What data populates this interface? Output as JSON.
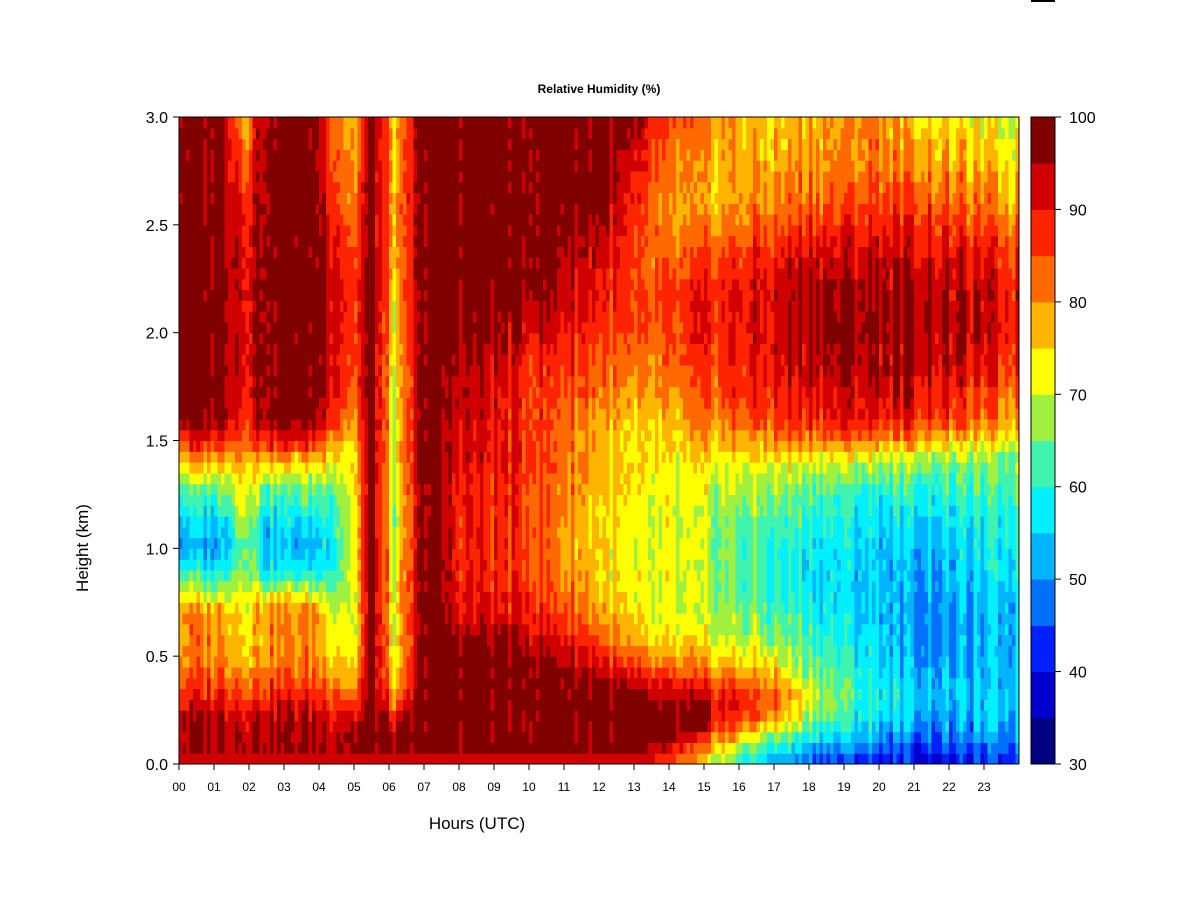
{
  "chart_data": {
    "type": "heatmap",
    "title": "Relative Humidity (%)",
    "xlabel": "Hours (UTC)",
    "ylabel": "Height (km)",
    "xlim": [
      0,
      24
    ],
    "ylim": [
      0,
      3
    ],
    "x_ticks": [
      "00",
      "01",
      "02",
      "03",
      "04",
      "05",
      "06",
      "07",
      "08",
      "09",
      "10",
      "11",
      "12",
      "13",
      "14",
      "15",
      "16",
      "17",
      "18",
      "19",
      "20",
      "21",
      "22",
      "23"
    ],
    "y_ticks": [
      "0.0",
      "0.5",
      "1.0",
      "1.5",
      "2.0",
      "2.5",
      "3.0"
    ],
    "colorbar": {
      "range": [
        30,
        100
      ],
      "levels": [
        30,
        35,
        40,
        45,
        50,
        55,
        60,
        65,
        70,
        75,
        80,
        85,
        90,
        95,
        100
      ],
      "tick_labels": [
        "30",
        "40",
        "50",
        "60",
        "70",
        "80",
        "90",
        "100"
      ],
      "colors": [
        "#000080",
        "#0000cd",
        "#0020ff",
        "#0070ff",
        "#00b4ff",
        "#00f0ff",
        "#40f4b0",
        "#a0f040",
        "#ffff00",
        "#ffb400",
        "#ff6a00",
        "#ff2400",
        "#d00000",
        "#800000"
      ]
    },
    "heights_km": [
      0.0,
      0.1,
      0.2,
      0.3,
      0.4,
      0.5,
      0.6,
      0.7,
      0.8,
      0.9,
      1.0,
      1.1,
      1.2,
      1.3,
      1.4,
      1.5,
      1.6,
      1.8,
      2.0,
      2.2,
      2.4,
      2.6,
      2.8,
      3.0
    ],
    "profiles": [
      {
        "hour": 0.0,
        "rh": [
          96,
          96,
          96,
          90,
          84,
          80,
          80,
          82,
          70,
          60,
          52,
          55,
          60,
          66,
          75,
          88,
          98,
          99,
          99,
          99,
          99,
          98,
          98,
          98
        ]
      },
      {
        "hour": 1.2,
        "rh": [
          96,
          96,
          96,
          90,
          85,
          82,
          80,
          80,
          68,
          58,
          52,
          55,
          60,
          67,
          78,
          90,
          98,
          99,
          99,
          99,
          99,
          98,
          98,
          98
        ]
      },
      {
        "hour": 1.9,
        "rh": [
          96,
          96,
          95,
          88,
          82,
          78,
          76,
          76,
          72,
          70,
          70,
          72,
          74,
          76,
          80,
          86,
          90,
          92,
          92,
          92,
          92,
          90,
          84,
          80
        ]
      },
      {
        "hour": 2.5,
        "rh": [
          96,
          96,
          95,
          90,
          84,
          80,
          80,
          82,
          70,
          58,
          52,
          55,
          60,
          66,
          76,
          90,
          98,
          99,
          99,
          99,
          99,
          99,
          99,
          99
        ]
      },
      {
        "hour": 3.8,
        "rh": [
          96,
          96,
          95,
          90,
          84,
          80,
          80,
          82,
          70,
          58,
          52,
          55,
          60,
          66,
          76,
          90,
          98,
          99,
          99,
          99,
          99,
          99,
          99,
          99
        ]
      },
      {
        "hour": 4.4,
        "rh": [
          96,
          96,
          95,
          88,
          82,
          76,
          74,
          74,
          68,
          62,
          60,
          62,
          64,
          68,
          74,
          82,
          90,
          94,
          95,
          95,
          94,
          90,
          88,
          86
        ]
      },
      {
        "hour": 5.0,
        "rh": [
          96,
          96,
          94,
          84,
          76,
          72,
          70,
          70,
          70,
          72,
          72,
          72,
          72,
          72,
          74,
          76,
          80,
          84,
          86,
          86,
          84,
          80,
          78,
          76
        ]
      },
      {
        "hour": 5.5,
        "rh": [
          99,
          99,
          99,
          99,
          99,
          99,
          99,
          99,
          99,
          99,
          99,
          99,
          99,
          99,
          99,
          99,
          99,
          99,
          99,
          99,
          99,
          99,
          99,
          99
        ]
      },
      {
        "hour": 6.2,
        "rh": [
          96,
          96,
          92,
          80,
          72,
          70,
          70,
          70,
          70,
          70,
          68,
          66,
          66,
          68,
          70,
          70,
          70,
          70,
          72,
          74,
          76,
          76,
          74,
          74
        ]
      },
      {
        "hour": 7.0,
        "rh": [
          99,
          99,
          99,
          99,
          99,
          99,
          99,
          99,
          99,
          99,
          99,
          99,
          99,
          99,
          99,
          99,
          99,
          99,
          99,
          99,
          99,
          99,
          99,
          99
        ]
      },
      {
        "hour": 8.0,
        "rh": [
          99,
          99,
          99,
          99,
          99,
          99,
          96,
          92,
          90,
          90,
          90,
          90,
          90,
          90,
          92,
          93,
          93,
          95,
          98,
          99,
          99,
          99,
          99,
          99
        ]
      },
      {
        "hour": 10.0,
        "rh": [
          99,
          99,
          99,
          99,
          99,
          98,
          94,
          90,
          88,
          86,
          86,
          86,
          86,
          86,
          88,
          88,
          88,
          88,
          93,
          99,
          99,
          99,
          99,
          99
        ]
      },
      {
        "hour": 12.0,
        "rh": [
          99,
          99,
          99,
          99,
          96,
          90,
          84,
          80,
          78,
          76,
          76,
          76,
          76,
          78,
          78,
          78,
          80,
          84,
          88,
          90,
          94,
          98,
          99,
          99
        ]
      },
      {
        "hour": 13.0,
        "rh": [
          99,
          99,
          99,
          96,
          90,
          80,
          74,
          72,
          70,
          70,
          70,
          70,
          70,
          72,
          72,
          72,
          74,
          78,
          82,
          84,
          84,
          86,
          90,
          94
        ]
      },
      {
        "hour": 14.0,
        "rh": [
          80,
          95,
          99,
          94,
          86,
          78,
          72,
          70,
          70,
          70,
          70,
          70,
          70,
          70,
          72,
          74,
          76,
          80,
          84,
          84,
          80,
          78,
          80,
          84
        ]
      },
      {
        "hour": 15.0,
        "rh": [
          72,
          82,
          94,
          92,
          84,
          76,
          70,
          68,
          68,
          68,
          68,
          68,
          68,
          70,
          72,
          76,
          80,
          84,
          88,
          88,
          82,
          76,
          78,
          80
        ]
      },
      {
        "hour": 16.0,
        "rh": [
          60,
          72,
          86,
          90,
          82,
          74,
          68,
          66,
          64,
          64,
          64,
          64,
          66,
          68,
          72,
          78,
          84,
          88,
          90,
          90,
          86,
          80,
          78,
          78
        ]
      },
      {
        "hour": 17.0,
        "rh": [
          52,
          62,
          78,
          84,
          78,
          70,
          66,
          62,
          60,
          60,
          60,
          62,
          64,
          68,
          72,
          80,
          86,
          90,
          92,
          92,
          88,
          80,
          78,
          76
        ]
      },
      {
        "hour": 18.0,
        "rh": [
          45,
          56,
          66,
          72,
          68,
          64,
          62,
          60,
          58,
          58,
          58,
          60,
          62,
          66,
          72,
          82,
          88,
          94,
          96,
          96,
          92,
          84,
          80,
          78
        ]
      },
      {
        "hour": 19.0,
        "rh": [
          42,
          52,
          60,
          64,
          62,
          60,
          58,
          57,
          56,
          56,
          56,
          58,
          60,
          64,
          70,
          82,
          90,
          94,
          96,
          96,
          92,
          84,
          80,
          80
        ]
      },
      {
        "hour": 20.0,
        "rh": [
          40,
          50,
          56,
          60,
          58,
          56,
          55,
          54,
          54,
          54,
          55,
          56,
          58,
          62,
          68,
          82,
          90,
          95,
          96,
          96,
          92,
          86,
          82,
          82
        ]
      },
      {
        "hour": 21.0,
        "rh": [
          38,
          46,
          52,
          56,
          54,
          52,
          50,
          50,
          52,
          52,
          54,
          56,
          58,
          62,
          68,
          80,
          88,
          94,
          96,
          96,
          92,
          86,
          80,
          76
        ]
      },
      {
        "hour": 22.0,
        "rh": [
          38,
          46,
          50,
          54,
          52,
          50,
          50,
          50,
          52,
          52,
          54,
          56,
          58,
          62,
          66,
          76,
          86,
          92,
          94,
          94,
          90,
          84,
          78,
          74
        ]
      },
      {
        "hour": 23.0,
        "rh": [
          40,
          48,
          52,
          54,
          52,
          52,
          52,
          52,
          54,
          56,
          56,
          58,
          60,
          62,
          66,
          74,
          82,
          88,
          92,
          92,
          88,
          80,
          76,
          72
        ]
      },
      {
        "hour": 23.85,
        "rh": [
          42,
          50,
          54,
          56,
          54,
          54,
          54,
          54,
          56,
          58,
          58,
          60,
          62,
          64,
          66,
          72,
          80,
          86,
          90,
          90,
          86,
          78,
          74,
          70
        ]
      }
    ]
  }
}
